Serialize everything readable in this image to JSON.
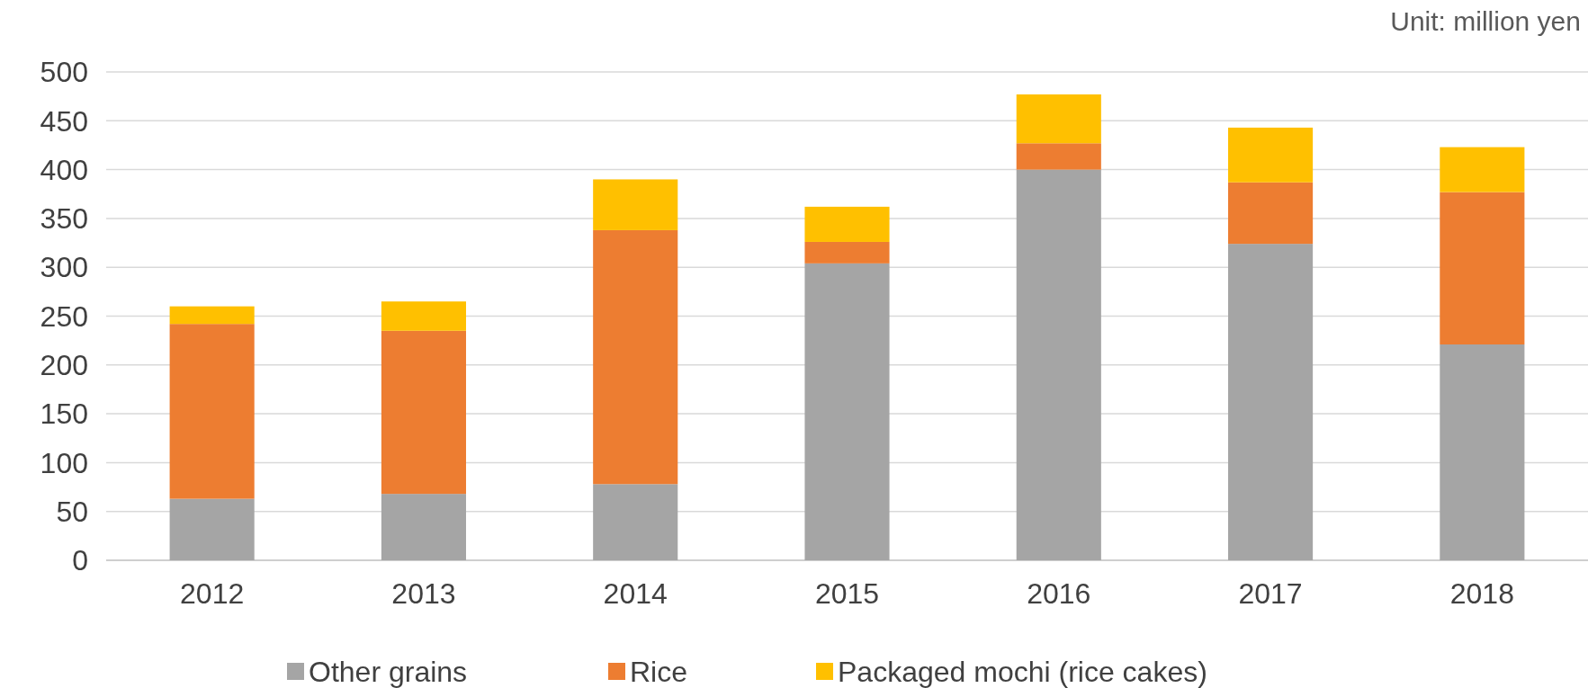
{
  "chart_data": {
    "type": "bar",
    "stacked": true,
    "categories": [
      "2012",
      "2013",
      "2014",
      "2015",
      "2016",
      "2017",
      "2018"
    ],
    "series": [
      {
        "name": "Other grains",
        "color": "#a5a5a5",
        "values": [
          63,
          68,
          78,
          304,
          400,
          324,
          221
        ]
      },
      {
        "name": "Rice",
        "color": "#ed7d31",
        "values": [
          179,
          167,
          260,
          22,
          27,
          63,
          156
        ]
      },
      {
        "name": "Packaged mochi (rice cakes)",
        "color": "#ffc000",
        "values": [
          18,
          30,
          52,
          36,
          50,
          56,
          46
        ]
      }
    ],
    "ylim": [
      0,
      500
    ],
    "yticks": [
      0,
      50,
      100,
      150,
      200,
      250,
      300,
      350,
      400,
      450,
      500
    ],
    "grid": "y",
    "legend": "bottom",
    "annotations": [
      "Unit: million yen"
    ]
  }
}
